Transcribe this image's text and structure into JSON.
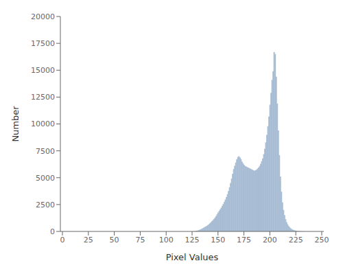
{
  "chart_data": {
    "type": "bar",
    "xlabel": "Pixel Values",
    "ylabel": "Number",
    "xlim": [
      -2,
      252
    ],
    "ylim": [
      0,
      20000
    ],
    "xticks": [
      0,
      25,
      50,
      75,
      100,
      125,
      150,
      175,
      200,
      225,
      250
    ],
    "yticks": [
      0,
      2500,
      5000,
      7500,
      10000,
      12500,
      15000,
      17500,
      20000
    ],
    "color": "#a8bdd4",
    "grid": false,
    "x": [
      0,
      1,
      2,
      3,
      4,
      5,
      6,
      7,
      8,
      9,
      10,
      11,
      12,
      13,
      14,
      15,
      16,
      17,
      18,
      19,
      20,
      21,
      22,
      23,
      24,
      25,
      26,
      27,
      28,
      29,
      30,
      31,
      32,
      33,
      34,
      35,
      36,
      37,
      38,
      39,
      40,
      41,
      42,
      43,
      44,
      45,
      46,
      47,
      48,
      49,
      50,
      51,
      52,
      53,
      54,
      55,
      56,
      57,
      58,
      59,
      60,
      61,
      62,
      63,
      64,
      65,
      66,
      67,
      68,
      69,
      70,
      71,
      72,
      73,
      74,
      75,
      76,
      77,
      78,
      79,
      80,
      81,
      82,
      83,
      84,
      85,
      86,
      87,
      88,
      89,
      90,
      91,
      92,
      93,
      94,
      95,
      96,
      97,
      98,
      99,
      100,
      101,
      102,
      103,
      104,
      105,
      106,
      107,
      108,
      109,
      110,
      111,
      112,
      113,
      114,
      115,
      116,
      117,
      118,
      119,
      120,
      121,
      122,
      123,
      124,
      125,
      126,
      127,
      128,
      129,
      130,
      131,
      132,
      133,
      134,
      135,
      136,
      137,
      138,
      139,
      140,
      141,
      142,
      143,
      144,
      145,
      146,
      147,
      148,
      149,
      150,
      151,
      152,
      153,
      154,
      155,
      156,
      157,
      158,
      159,
      160,
      161,
      162,
      163,
      164,
      165,
      166,
      167,
      168,
      169,
      170,
      171,
      172,
      173,
      174,
      175,
      176,
      177,
      178,
      179,
      180,
      181,
      182,
      183,
      184,
      185,
      186,
      187,
      188,
      189,
      190,
      191,
      192,
      193,
      194,
      195,
      196,
      197,
      198,
      199,
      200,
      201,
      202,
      203,
      204,
      205,
      206,
      207,
      208,
      209,
      210,
      211,
      212,
      213,
      214,
      215,
      216,
      217,
      218,
      219,
      220,
      221,
      222,
      223,
      224,
      225,
      226,
      227,
      228,
      229,
      230,
      231,
      232,
      233,
      234,
      235,
      236,
      237,
      238,
      239,
      240,
      241,
      242,
      243,
      244,
      245,
      246,
      247,
      248,
      249,
      250
    ],
    "values": [
      0,
      0,
      0,
      0,
      0,
      0,
      0,
      0,
      0,
      0,
      0,
      0,
      0,
      0,
      0,
      0,
      0,
      0,
      0,
      0,
      0,
      0,
      0,
      0,
      0,
      0,
      0,
      0,
      0,
      0,
      0,
      0,
      0,
      0,
      0,
      0,
      0,
      0,
      0,
      0,
      0,
      0,
      0,
      0,
      0,
      0,
      0,
      0,
      0,
      0,
      0,
      0,
      0,
      0,
      0,
      0,
      0,
      0,
      0,
      0,
      0,
      0,
      0,
      0,
      0,
      0,
      0,
      0,
      0,
      0,
      0,
      0,
      0,
      0,
      0,
      0,
      0,
      0,
      0,
      0,
      0,
      0,
      0,
      0,
      0,
      0,
      0,
      0,
      0,
      0,
      0,
      0,
      0,
      0,
      0,
      0,
      0,
      0,
      0,
      0,
      0,
      0,
      0,
      0,
      0,
      0,
      0,
      0,
      0,
      0,
      0,
      0,
      0,
      0,
      0,
      0,
      0,
      0,
      0,
      0,
      0,
      0,
      0,
      0,
      0,
      5,
      10,
      20,
      35,
      55,
      80,
      110,
      145,
      185,
      235,
      290,
      345,
      405,
      455,
      510,
      580,
      660,
      750,
      850,
      950,
      1050,
      1160,
      1290,
      1430,
      1590,
      1760,
      1910,
      2060,
      2210,
      2390,
      2560,
      2760,
      2970,
      3200,
      3470,
      3760,
      4110,
      4510,
      4910,
      5360,
      5810,
      6110,
      6410,
      6710,
      6920,
      7000,
      6880,
      6730,
      6490,
      6340,
      6190,
      6090,
      6040,
      5990,
      5940,
      5890,
      5840,
      5790,
      5740,
      5690,
      5640,
      5690,
      5740,
      5840,
      5940,
      6090,
      6290,
      6540,
      6790,
      7190,
      7690,
      8290,
      8990,
      9790,
      10690,
      11790,
      12890,
      14100,
      14900,
      16700,
      16500,
      14400,
      11900,
      9400,
      7100,
      5100,
      3700,
      2700,
      2000,
      1520,
      1140,
      860,
      660,
      490,
      380,
      280,
      215,
      160,
      120,
      92,
      73,
      56,
      42,
      32,
      22,
      16,
      12,
      9,
      6,
      4,
      3,
      2,
      2,
      1,
      1,
      0,
      0,
      0,
      0,
      0,
      0,
      0,
      0,
      0,
      0,
      0
    ]
  }
}
